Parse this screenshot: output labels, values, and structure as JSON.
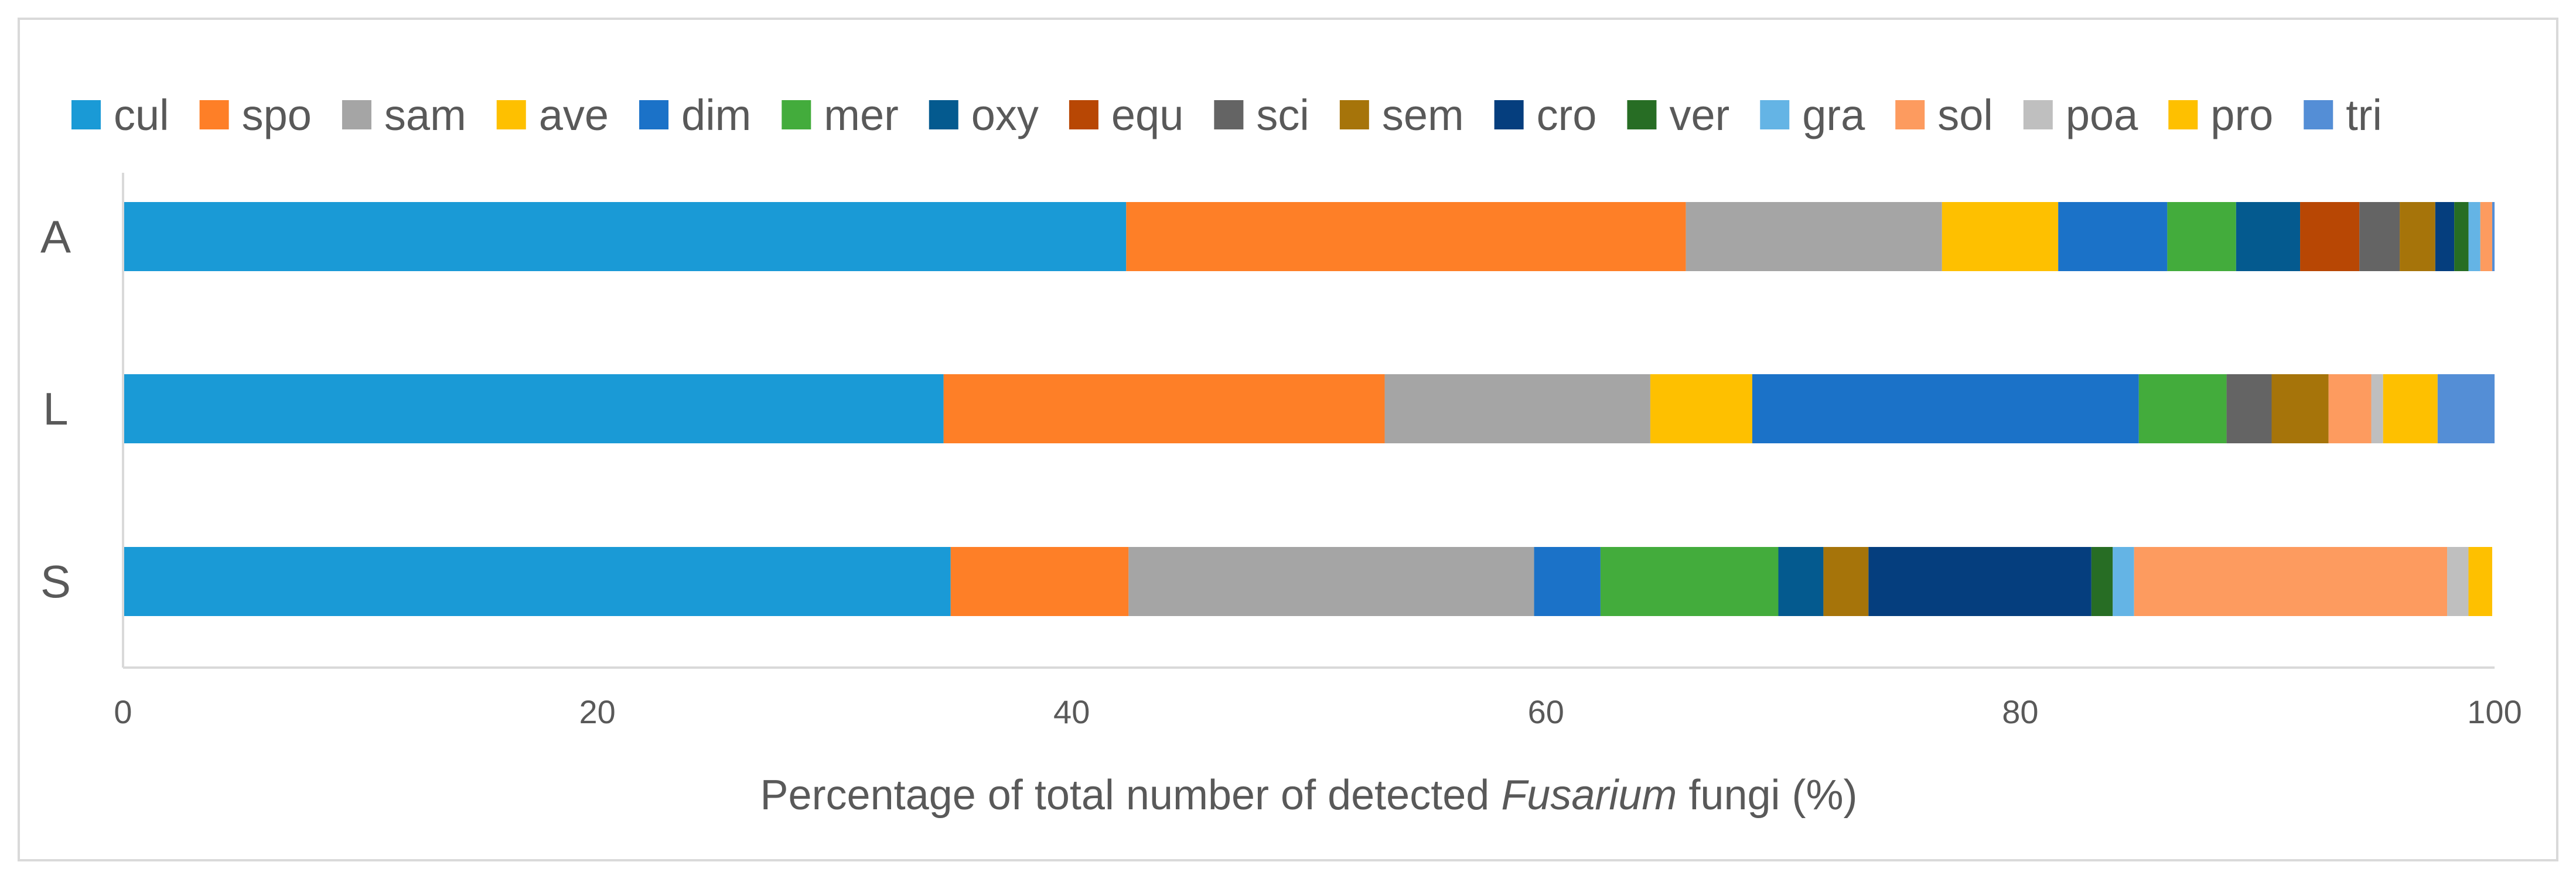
{
  "chart_data": {
    "type": "bar",
    "orientation": "horizontal",
    "stacked": true,
    "categories": [
      "A",
      "L",
      "S"
    ],
    "series": [
      {
        "name": "cul",
        "color": "#1a9ad6",
        "values": [
          42.3,
          34.6,
          34.9
        ]
      },
      {
        "name": "spo",
        "color": "#fe7f27",
        "values": [
          23.6,
          18.6,
          7.5
        ]
      },
      {
        "name": "sam",
        "color": "#a5a5a5",
        "values": [
          10.8,
          11.2,
          17.1
        ]
      },
      {
        "name": "ave",
        "color": "#fec000",
        "values": [
          4.9,
          4.3,
          0.0
        ]
      },
      {
        "name": "dim",
        "color": "#1b72c8",
        "values": [
          4.6,
          16.3,
          2.8
        ]
      },
      {
        "name": "mer",
        "color": "#43ac3c",
        "values": [
          2.9,
          3.7,
          7.5
        ]
      },
      {
        "name": "oxy",
        "color": "#045a8f",
        "values": [
          2.7,
          0.0,
          1.9
        ]
      },
      {
        "name": "equ",
        "color": "#b84704",
        "values": [
          2.5,
          0.0,
          0.0
        ]
      },
      {
        "name": "sci",
        "color": "#646464",
        "values": [
          1.7,
          1.9,
          0.0
        ]
      },
      {
        "name": "sem",
        "color": "#a6740a",
        "values": [
          1.5,
          2.4,
          1.9
        ]
      },
      {
        "name": "cro",
        "color": "#053e7e",
        "values": [
          0.8,
          0.0,
          9.4
        ]
      },
      {
        "name": "ver",
        "color": "#276d24",
        "values": [
          0.6,
          0.0,
          0.9
        ]
      },
      {
        "name": "gra",
        "color": "#64b4e5",
        "values": [
          0.5,
          0.0,
          0.9
        ]
      },
      {
        "name": "sol",
        "color": "#fd9b5f",
        "values": [
          0.5,
          1.8,
          13.2
        ]
      },
      {
        "name": "poa",
        "color": "#bfbfbf",
        "values": [
          0.0,
          0.5,
          0.9
        ]
      },
      {
        "name": "pro",
        "color": "#fec000",
        "values": [
          0.0,
          2.3,
          1.0
        ]
      },
      {
        "name": "tri",
        "color": "#548ed6",
        "values": [
          0.1,
          2.4,
          0.0
        ]
      }
    ],
    "xlim": [
      0,
      100
    ],
    "xticks": [
      0,
      20,
      40,
      60,
      80,
      100
    ],
    "xtick_labels": [
      "0",
      "20",
      "40",
      "60",
      "80",
      "100"
    ],
    "xlabel_parts": [
      {
        "text": "Percentage of total number of detected ",
        "italic": false
      },
      {
        "text": "Fusarium",
        "italic": true
      },
      {
        "text": " fungi (%)",
        "italic": false
      }
    ],
    "legend_position": "top",
    "grid": false
  }
}
